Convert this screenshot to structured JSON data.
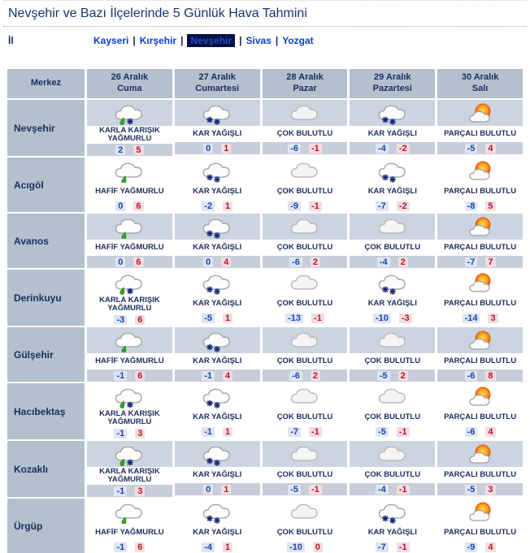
{
  "title": "Nevşehir ve Bazı İlçelerinde 5 Günlük Hava Tahmini",
  "province_selector": {
    "label": "İl",
    "separator": "|",
    "provinces": [
      {
        "name": "Kayseri",
        "selected": false
      },
      {
        "name": "Kırşehir",
        "selected": false
      },
      {
        "name": "Nevşehir",
        "selected": true
      },
      {
        "name": "Sivas",
        "selected": false
      },
      {
        "name": "Yozgat",
        "selected": false
      }
    ]
  },
  "table": {
    "corner_header": "Merkez",
    "day_headers": [
      {
        "date": "26 Aralık",
        "day": "Cuma"
      },
      {
        "date": "27 Aralık",
        "day": "Cumartesi"
      },
      {
        "date": "28 Aralık",
        "day": "Pazar"
      },
      {
        "date": "29 Aralık",
        "day": "Pazartesi"
      },
      {
        "date": "30 Aralık",
        "day": "Salı"
      }
    ],
    "rows": [
      {
        "district": "Nevşehir",
        "forecasts": [
          {
            "icon": "sleet-icon",
            "condition": "KARLA KARIŞIK YAĞMURLU",
            "min": 2,
            "max": 5
          },
          {
            "icon": "snow-icon",
            "condition": "KAR YAĞIŞLI",
            "min": 0,
            "max": 1
          },
          {
            "icon": "overcast-icon",
            "condition": "ÇOK BULUTLU",
            "min": -6,
            "max": -1
          },
          {
            "icon": "snow-icon",
            "condition": "KAR YAĞIŞLI",
            "min": -4,
            "max": -2
          },
          {
            "icon": "partly-cloudy-icon",
            "condition": "PARÇALI BULUTLU",
            "min": -5,
            "max": 4
          }
        ]
      },
      {
        "district": "Acıgöl",
        "forecasts": [
          {
            "icon": "light-rain-icon",
            "condition": "HAFİF YAĞMURLU",
            "min": 0,
            "max": 6
          },
          {
            "icon": "snow-icon",
            "condition": "KAR YAĞIŞLI",
            "min": -2,
            "max": 1
          },
          {
            "icon": "overcast-icon",
            "condition": "ÇOK BULUTLU",
            "min": -9,
            "max": -1
          },
          {
            "icon": "snow-icon",
            "condition": "KAR YAĞIŞLI",
            "min": -7,
            "max": -2
          },
          {
            "icon": "partly-cloudy-icon",
            "condition": "PARÇALI BULUTLU",
            "min": -8,
            "max": 5
          }
        ]
      },
      {
        "district": "Avanos",
        "forecasts": [
          {
            "icon": "light-rain-icon",
            "condition": "HAFİF YAĞMURLU",
            "min": 0,
            "max": 6
          },
          {
            "icon": "snow-icon",
            "condition": "KAR YAĞIŞLI",
            "min": 0,
            "max": 4
          },
          {
            "icon": "overcast-icon",
            "condition": "ÇOK BULUTLU",
            "min": -6,
            "max": 2
          },
          {
            "icon": "overcast-icon",
            "condition": "ÇOK BULUTLU",
            "min": -4,
            "max": 2
          },
          {
            "icon": "partly-cloudy-icon",
            "condition": "PARÇALI BULUTLU",
            "min": -7,
            "max": 7
          }
        ]
      },
      {
        "district": "Derinkuyu",
        "forecasts": [
          {
            "icon": "sleet-icon",
            "condition": "KARLA KARIŞIK YAĞMURLU",
            "min": -3,
            "max": 6
          },
          {
            "icon": "snow-icon",
            "condition": "KAR YAĞIŞLI",
            "min": -5,
            "max": 1
          },
          {
            "icon": "overcast-icon",
            "condition": "ÇOK BULUTLU",
            "min": -13,
            "max": -1
          },
          {
            "icon": "snow-icon",
            "condition": "KAR YAĞIŞLI",
            "min": -10,
            "max": -3
          },
          {
            "icon": "partly-cloudy-icon",
            "condition": "PARÇALI BULUTLU",
            "min": -14,
            "max": 3
          }
        ]
      },
      {
        "district": "Gülşehir",
        "forecasts": [
          {
            "icon": "light-rain-icon",
            "condition": "HAFİF YAĞMURLU",
            "min": -1,
            "max": 6
          },
          {
            "icon": "snow-icon",
            "condition": "KAR YAĞIŞLI",
            "min": -1,
            "max": 4
          },
          {
            "icon": "overcast-icon",
            "condition": "ÇOK BULUTLU",
            "min": -6,
            "max": 2
          },
          {
            "icon": "overcast-icon",
            "condition": "ÇOK BULUTLU",
            "min": -5,
            "max": 2
          },
          {
            "icon": "partly-cloudy-icon",
            "condition": "PARÇALI BULUTLU",
            "min": -6,
            "max": 8
          }
        ]
      },
      {
        "district": "Hacıbektaş",
        "forecasts": [
          {
            "icon": "sleet-icon",
            "condition": "KARLA KARIŞIK YAĞMURLU",
            "min": -1,
            "max": 3
          },
          {
            "icon": "snow-icon",
            "condition": "KAR YAĞIŞLI",
            "min": -1,
            "max": 1
          },
          {
            "icon": "overcast-icon",
            "condition": "ÇOK BULUTLU",
            "min": -7,
            "max": -1
          },
          {
            "icon": "overcast-icon",
            "condition": "ÇOK BULUTLU",
            "min": -5,
            "max": -1
          },
          {
            "icon": "partly-cloudy-icon",
            "condition": "PARÇALI BULUTLU",
            "min": -6,
            "max": 4
          }
        ]
      },
      {
        "district": "Kozaklı",
        "forecasts": [
          {
            "icon": "sleet-icon",
            "condition": "KARLA KARIŞIK YAĞMURLU",
            "min": -1,
            "max": 3
          },
          {
            "icon": "snow-icon",
            "condition": "KAR YAĞIŞLI",
            "min": 0,
            "max": 1
          },
          {
            "icon": "overcast-icon",
            "condition": "ÇOK BULUTLU",
            "min": -5,
            "max": -1
          },
          {
            "icon": "overcast-icon",
            "condition": "ÇOK BULUTLU",
            "min": -4,
            "max": -1
          },
          {
            "icon": "partly-cloudy-icon",
            "condition": "PARÇALI BULUTLU",
            "min": -5,
            "max": 3
          }
        ]
      },
      {
        "district": "Ürgüp",
        "forecasts": [
          {
            "icon": "light-rain-icon",
            "condition": "HAFİF YAĞMURLU",
            "min": -1,
            "max": 6
          },
          {
            "icon": "snow-icon",
            "condition": "KAR YAĞIŞLI",
            "min": -4,
            "max": 1
          },
          {
            "icon": "overcast-icon",
            "condition": "ÇOK BULUTLU",
            "min": -10,
            "max": 0
          },
          {
            "icon": "snow-icon",
            "condition": "KAR YAĞIŞLI",
            "min": -7,
            "max": -1
          },
          {
            "icon": "partly-cloudy-icon",
            "condition": "PARÇALI BULUTLU",
            "min": -9,
            "max": 4
          }
        ]
      }
    ]
  },
  "colors": {
    "title_text": "#16356e",
    "link_blue": "#0c3bd0",
    "selected_bg": "#021242",
    "header_bg": "#b3c0ce",
    "stripe_bg": "#ccd4e0",
    "temp_stripe_bg": "#c7cdd9",
    "condition_text": "#1c2d5e",
    "min_temp": "#1747b0",
    "max_temp": "#c01423",
    "rain_drop_green": "#3aa32a",
    "snowflake_navy": "#1d2b7d"
  }
}
